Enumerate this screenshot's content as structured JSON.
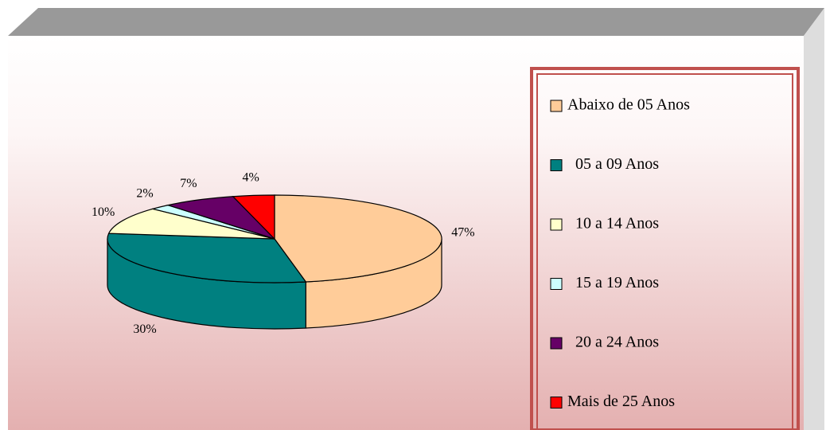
{
  "chart_data": {
    "type": "pie",
    "categories": [
      "Abaixo de 05 Anos",
      "05 a 09 Anos",
      "10 a 14 Anos",
      "15 a 19 Anos",
      "20 a 24 Anos",
      "Mais de 25 Anos"
    ],
    "values": [
      47,
      30,
      10,
      2,
      7,
      4
    ],
    "value_labels": [
      "47%",
      "30%",
      "10%",
      "2%",
      "7%",
      "4%"
    ],
    "colors": [
      "#ffcc99",
      "#008080",
      "#ffffcc",
      "#ccffff",
      "#660066",
      "#ff0000"
    ],
    "legend": "right"
  }
}
